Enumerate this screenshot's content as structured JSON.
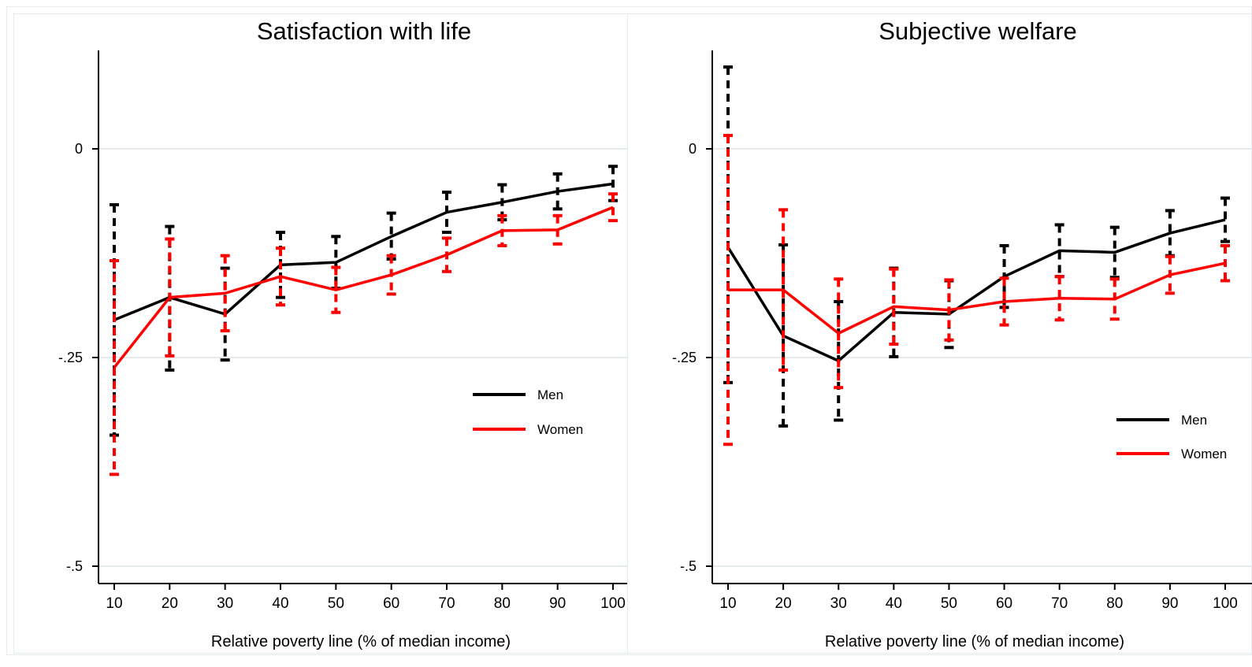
{
  "chart_data": [
    {
      "type": "line",
      "title": "Satisfaction with life",
      "xlabel": "Relative poverty line (% of median income)",
      "ylabel": "",
      "x": [
        10,
        20,
        30,
        40,
        50,
        60,
        70,
        80,
        90,
        100
      ],
      "xticks": [
        "10",
        "20",
        "30",
        "40",
        "50",
        "60",
        "70",
        "80",
        "90",
        "100"
      ],
      "yticks": [
        {
          "value": 0,
          "label": "0"
        },
        {
          "value": -0.25,
          "label": "-.25"
        },
        {
          "value": -0.5,
          "label": "-.5"
        }
      ],
      "ylim": [
        -0.52,
        0.117
      ],
      "xlim": [
        7.2,
        102.3
      ],
      "grid": true,
      "legend_position": "right",
      "series": [
        {
          "name": "Men",
          "color": "#000000",
          "values": [
            -0.205,
            -0.178,
            -0.198,
            -0.139,
            -0.136,
            -0.105,
            -0.076,
            -0.064,
            -0.051,
            -0.042
          ],
          "ci_low": [
            -0.343,
            -0.265,
            -0.253,
            -0.178,
            -0.167,
            -0.132,
            -0.1,
            -0.085,
            -0.072,
            -0.062
          ],
          "ci_high": [
            -0.067,
            -0.093,
            -0.143,
            -0.1,
            -0.105,
            -0.077,
            -0.052,
            -0.043,
            -0.03,
            -0.021
          ]
        },
        {
          "name": "Women",
          "color": "#ff0000",
          "values": [
            -0.262,
            -0.178,
            -0.173,
            -0.153,
            -0.169,
            -0.151,
            -0.127,
            -0.098,
            -0.097,
            -0.07
          ],
          "ci_low": [
            -0.39,
            -0.248,
            -0.218,
            -0.187,
            -0.196,
            -0.174,
            -0.147,
            -0.116,
            -0.114,
            -0.086
          ],
          "ci_high": [
            -0.134,
            -0.108,
            -0.128,
            -0.119,
            -0.142,
            -0.128,
            -0.107,
            -0.08,
            -0.08,
            -0.054
          ]
        }
      ]
    },
    {
      "type": "line",
      "title": "Subjective welfare",
      "xlabel": "Relative poverty line (% of median income)",
      "ylabel": "",
      "x": [
        10,
        20,
        30,
        40,
        50,
        60,
        70,
        80,
        90,
        100
      ],
      "xticks": [
        "10",
        "20",
        "30",
        "40",
        "50",
        "60",
        "70",
        "80",
        "90",
        "100"
      ],
      "yticks": [
        {
          "value": 0,
          "label": "0"
        },
        {
          "value": -0.25,
          "label": "-.25"
        },
        {
          "value": -0.5,
          "label": "-.5"
        }
      ],
      "ylim": [
        -0.52,
        0.117
      ],
      "xlim": [
        7.2,
        102.3
      ],
      "grid": true,
      "legend_position": "bottom-right",
      "series": [
        {
          "name": "Men",
          "color": "#000000",
          "values": [
            -0.118,
            -0.224,
            -0.254,
            -0.196,
            -0.198,
            -0.153,
            -0.122,
            -0.124,
            -0.101,
            -0.085
          ],
          "ci_low": [
            -0.28,
            -0.332,
            -0.325,
            -0.249,
            -0.238,
            -0.19,
            -0.153,
            -0.154,
            -0.128,
            -0.111
          ],
          "ci_high": [
            0.098,
            -0.115,
            -0.183,
            -0.143,
            -0.158,
            -0.116,
            -0.091,
            -0.094,
            -0.074,
            -0.059
          ]
        },
        {
          "name": "Women",
          "color": "#ff0000",
          "values": [
            -0.169,
            -0.169,
            -0.221,
            -0.189,
            -0.193,
            -0.183,
            -0.179,
            -0.18,
            -0.151,
            -0.137
          ],
          "ci_low": [
            -0.354,
            -0.265,
            -0.286,
            -0.234,
            -0.229,
            -0.211,
            -0.205,
            -0.204,
            -0.173,
            -0.158
          ],
          "ci_high": [
            0.016,
            -0.073,
            -0.156,
            -0.144,
            -0.157,
            -0.155,
            -0.153,
            -0.156,
            -0.129,
            -0.116
          ]
        }
      ]
    }
  ]
}
